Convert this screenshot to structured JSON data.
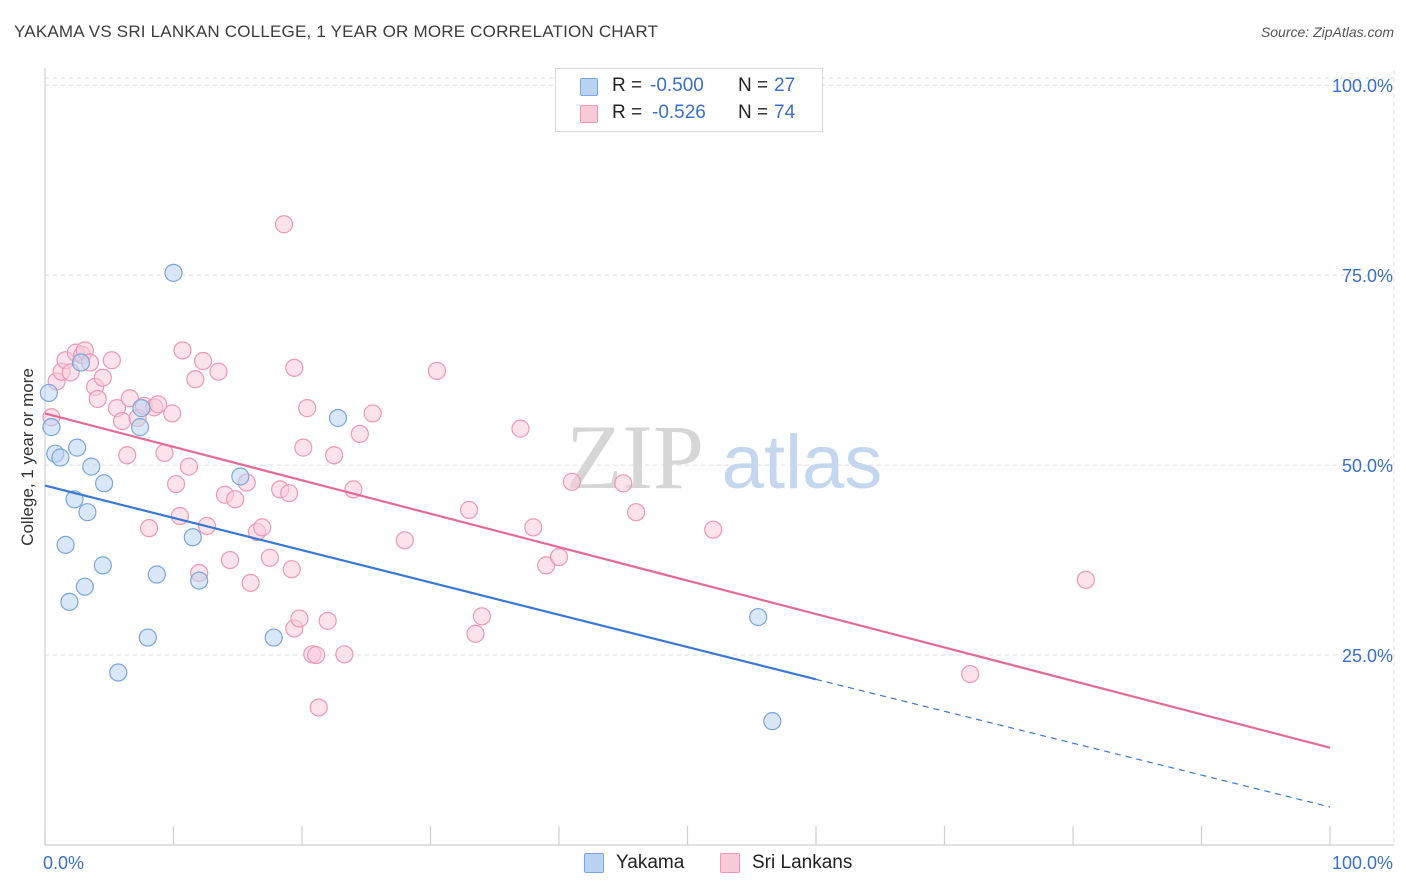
{
  "chart_data": {
    "type": "scatter",
    "title": "YAKAMA VS SRI LANKAN COLLEGE, 1 YEAR OR MORE CORRELATION CHART",
    "source": "Source: ZipAtlas.com",
    "ylabel": "College, 1 year or more",
    "xlim": [
      0,
      100
    ],
    "ylim": [
      0,
      102
    ],
    "x_tick_labels": {
      "left": "0.0%",
      "right": "100.0%"
    },
    "y_ticks": [
      {
        "value": 100,
        "label": "100.0%"
      },
      {
        "value": 75,
        "label": "75.0%"
      },
      {
        "value": 50,
        "label": "50.0%"
      },
      {
        "value": 25,
        "label": "25.0%"
      }
    ],
    "watermark": {
      "zip": "ZIP",
      "atlas": "atlas"
    },
    "legend_stats": [
      {
        "r_label": "R =",
        "r_value": "-0.500",
        "n_label": "N =",
        "n_value": "27"
      },
      {
        "r_label": "R =",
        "r_value": "-0.526",
        "n_label": "N =",
        "n_value": "74"
      }
    ],
    "series": [
      {
        "name": "Yakama",
        "fill": "#b9d3f3",
        "stroke": "#7aa6dd",
        "line_color": "#3a78d4",
        "trend": {
          "x0": 0,
          "y0": 47.3,
          "x1": 60,
          "y1": 21.8,
          "dash_to_x": 100,
          "dash_to_y": 5.0
        },
        "points": [
          [
            0.3,
            59.5
          ],
          [
            0.5,
            55
          ],
          [
            0.8,
            51.5
          ],
          [
            1.2,
            51
          ],
          [
            1.6,
            39.5
          ],
          [
            1.9,
            32
          ],
          [
            2.3,
            45.5
          ],
          [
            2.5,
            52.3
          ],
          [
            2.8,
            63.5
          ],
          [
            3.1,
            34
          ],
          [
            3.3,
            43.8
          ],
          [
            3.6,
            49.8
          ],
          [
            4.6,
            47.6
          ],
          [
            4.5,
            36.8
          ],
          [
            5.7,
            22.7
          ],
          [
            7.4,
            55
          ],
          [
            7.5,
            57.5
          ],
          [
            8.0,
            27.3
          ],
          [
            8.7,
            35.6
          ],
          [
            11.5,
            40.5
          ],
          [
            12.0,
            34.8
          ],
          [
            15.2,
            48.5
          ],
          [
            17.8,
            27.3
          ],
          [
            22.8,
            56.2
          ],
          [
            55.5,
            30.0
          ],
          [
            56.6,
            16.3
          ],
          [
            10.0,
            75.3
          ]
        ]
      },
      {
        "name": "Sri Lankans",
        "fill": "#f9cbd9",
        "stroke": "#ee98b3",
        "line_color": "#e26c98",
        "trend": {
          "x0": 0,
          "y0": 56.8,
          "x1": 100,
          "y1": 12.8
        },
        "points": [
          [
            0.5,
            56.3
          ],
          [
            0.9,
            61
          ],
          [
            1.3,
            62.3
          ],
          [
            1.6,
            63.8
          ],
          [
            2.0,
            62.2
          ],
          [
            2.4,
            64.8
          ],
          [
            2.9,
            64.5
          ],
          [
            3.1,
            65.1
          ],
          [
            3.5,
            63.5
          ],
          [
            3.9,
            60.3
          ],
          [
            4.1,
            58.7
          ],
          [
            4.5,
            61.5
          ],
          [
            5.2,
            63.8
          ],
          [
            5.6,
            57.5
          ],
          [
            6.0,
            55.8
          ],
          [
            6.4,
            51.3
          ],
          [
            6.6,
            58.8
          ],
          [
            7.2,
            56.2
          ],
          [
            7.7,
            57.8
          ],
          [
            8.1,
            41.7
          ],
          [
            8.5,
            57.6
          ],
          [
            8.8,
            58
          ],
          [
            9.3,
            51.6
          ],
          [
            9.9,
            56.8
          ],
          [
            10.2,
            47.5
          ],
          [
            10.5,
            43.3
          ],
          [
            10.7,
            65.1
          ],
          [
            11.2,
            49.8
          ],
          [
            11.7,
            61.3
          ],
          [
            12.0,
            35.8
          ],
          [
            12.3,
            63.7
          ],
          [
            12.6,
            42
          ],
          [
            13.5,
            62.3
          ],
          [
            14.0,
            46.1
          ],
          [
            14.4,
            37.5
          ],
          [
            14.8,
            45.5
          ],
          [
            15.7,
            47.7
          ],
          [
            16.0,
            34.5
          ],
          [
            16.5,
            41.2
          ],
          [
            16.9,
            41.8
          ],
          [
            17.5,
            37.8
          ],
          [
            18.3,
            46.8
          ],
          [
            18.6,
            81.7
          ],
          [
            19.0,
            46.3
          ],
          [
            19.2,
            36.3
          ],
          [
            19.4,
            28.5
          ],
          [
            19.4,
            62.8
          ],
          [
            19.8,
            29.8
          ],
          [
            20.1,
            52.3
          ],
          [
            20.4,
            57.5
          ],
          [
            20.8,
            25.1
          ],
          [
            21.1,
            25.0
          ],
          [
            21.3,
            18.1
          ],
          [
            22.0,
            29.5
          ],
          [
            22.5,
            51.3
          ],
          [
            23.3,
            25.1
          ],
          [
            24.0,
            46.8
          ],
          [
            24.5,
            54.1
          ],
          [
            25.5,
            56.8
          ],
          [
            28.0,
            40.1
          ],
          [
            30.5,
            62.4
          ],
          [
            33.0,
            44.1
          ],
          [
            33.5,
            27.8
          ],
          [
            34.0,
            30.1
          ],
          [
            37.0,
            54.8
          ],
          [
            38.0,
            41.8
          ],
          [
            39.0,
            36.8
          ],
          [
            40.0,
            37.9
          ],
          [
            41.0,
            47.8
          ],
          [
            45.0,
            47.6
          ],
          [
            46.0,
            43.8
          ],
          [
            52.0,
            41.5
          ],
          [
            72.0,
            22.5
          ],
          [
            81.0,
            34.9
          ]
        ]
      }
    ]
  }
}
